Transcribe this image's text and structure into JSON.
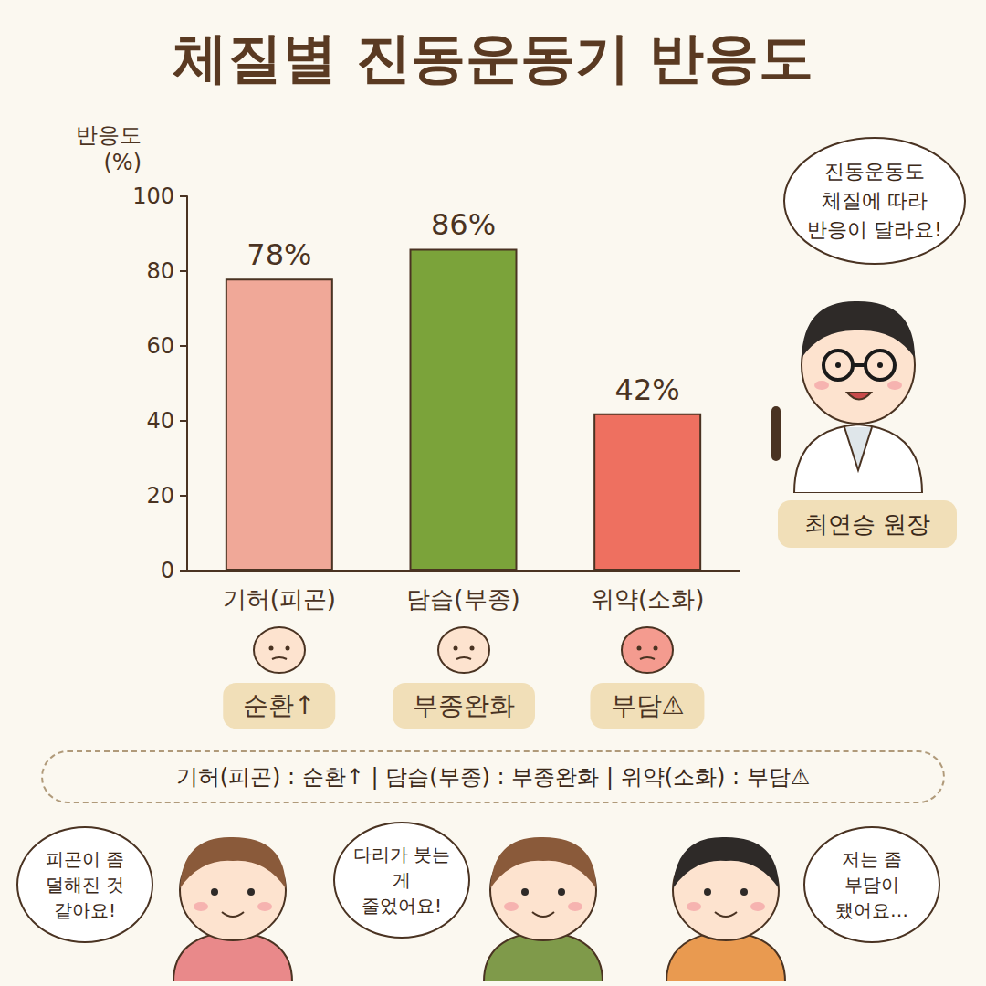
{
  "chart_data": {
    "type": "bar",
    "title": "체질별 진동운동기 반응도",
    "y_label": "반응도\n(%)",
    "categories": [
      "기허(피곤)",
      "담습(부종)",
      "위약(소화)"
    ],
    "values": [
      78,
      86,
      42
    ],
    "value_labels": [
      "78%",
      "86%",
      "42%"
    ],
    "colors": [
      "#f0a898",
      "#7ba33a",
      "#ee7060"
    ],
    "ylim": [
      0,
      100
    ],
    "yticks": [
      0,
      20,
      40,
      60,
      80,
      100
    ],
    "grid": false,
    "data_labels": true,
    "annotations": {
      "effects": [
        "순환↑",
        "부종완화",
        "부담⚠"
      ],
      "summary": "기허(피곤) : 순환↑ | 담습(부종) : 부종완화 | 위약(소화) : 부담⚠",
      "doctor_quote": "진동운동도 체질에 따라 반응이 달라요!",
      "doctor_name": "최연승 원장",
      "comments": [
        "피곤이 좀 덜해진 것 같아요!",
        "다리가 붓는 게 줄었어요!",
        "저는 좀 부담이 됐어요…"
      ]
    }
  }
}
